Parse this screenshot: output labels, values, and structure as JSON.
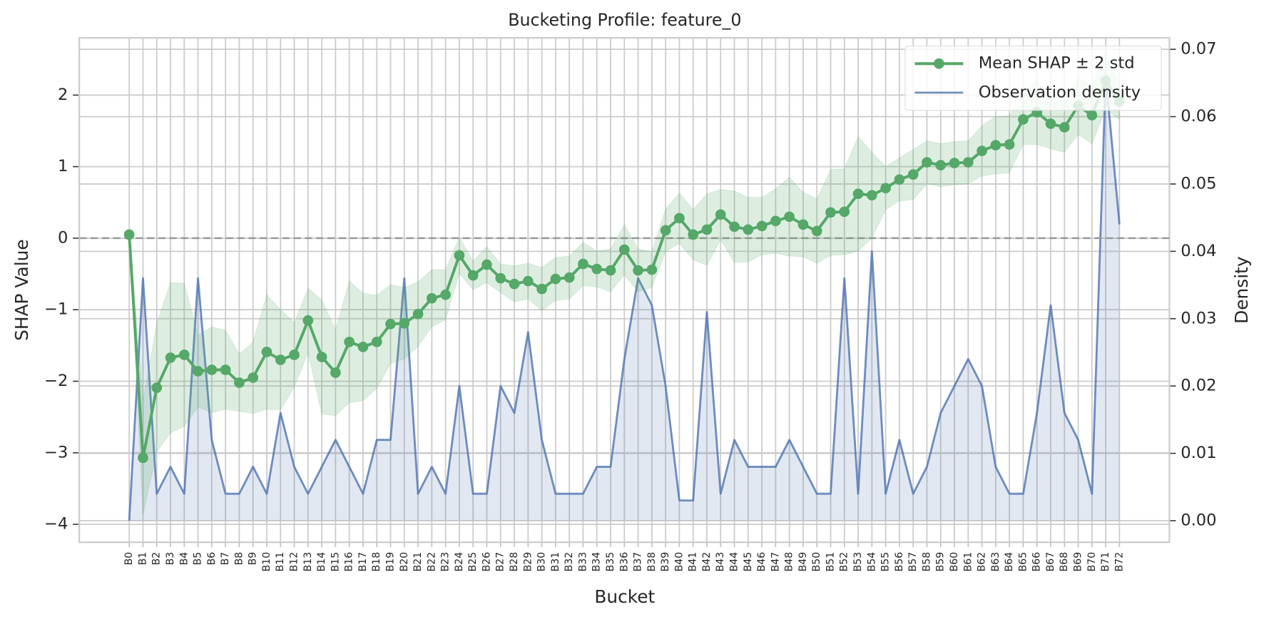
{
  "chart_data": {
    "type": "line",
    "title": "Bucketing Profile: feature_0",
    "xlabel": "Bucket",
    "ylabel": "SHAP Value",
    "y2label": "Density",
    "categories": [
      "B0",
      "B1",
      "B2",
      "B3",
      "B4",
      "B5",
      "B6",
      "B7",
      "B8",
      "B9",
      "B10",
      "B11",
      "B12",
      "B13",
      "B14",
      "B15",
      "B16",
      "B17",
      "B18",
      "B19",
      "B20",
      "B21",
      "B22",
      "B23",
      "B24",
      "B25",
      "B26",
      "B27",
      "B28",
      "B29",
      "B30",
      "B31",
      "B32",
      "B33",
      "B34",
      "B35",
      "B36",
      "B37",
      "B38",
      "B39",
      "B40",
      "B41",
      "B42",
      "B43",
      "B44",
      "B45",
      "B46",
      "B47",
      "B48",
      "B49",
      "B50",
      "B51",
      "B52",
      "B53",
      "B54",
      "B55",
      "B56",
      "B57",
      "B58",
      "B59",
      "B60",
      "B61",
      "B62",
      "B63",
      "B64",
      "B65",
      "B66",
      "B67",
      "B68",
      "B69",
      "B70",
      "B71",
      "B72"
    ],
    "series": [
      {
        "name": "Mean SHAP ± 2 std",
        "color": "#55a868",
        "values": [
          0.05,
          -3.07,
          -2.09,
          -1.67,
          -1.63,
          -1.86,
          -1.84,
          -1.84,
          -2.02,
          -1.95,
          -1.59,
          -1.7,
          -1.63,
          -1.15,
          -1.66,
          -1.88,
          -1.45,
          -1.52,
          -1.45,
          -1.2,
          -1.19,
          -1.06,
          -0.84,
          -0.79,
          -0.24,
          -0.52,
          -0.37,
          -0.56,
          -0.64,
          -0.6,
          -0.71,
          -0.57,
          -0.55,
          -0.36,
          -0.43,
          -0.45,
          -0.16,
          -0.45,
          -0.44,
          0.11,
          0.28,
          0.05,
          0.12,
          0.33,
          0.16,
          0.12,
          0.17,
          0.24,
          0.3,
          0.19,
          0.1,
          0.36,
          0.37,
          0.62,
          0.6,
          0.7,
          0.82,
          0.89,
          1.06,
          1.02,
          1.05,
          1.06,
          1.22,
          1.3,
          1.31,
          1.66,
          1.76,
          1.6,
          1.55,
          1.85,
          1.72,
          2.2,
          1.91
        ],
        "band_lower": [
          0.0,
          -3.87,
          -2.99,
          -2.72,
          -2.63,
          -2.36,
          -2.44,
          -2.39,
          -2.42,
          -2.45,
          -2.39,
          -2.4,
          -2.08,
          -1.6,
          -2.46,
          -2.48,
          -2.3,
          -2.27,
          -2.1,
          -1.75,
          -1.69,
          -1.51,
          -1.24,
          -1.14,
          -0.49,
          -0.72,
          -0.62,
          -0.76,
          -0.89,
          -0.85,
          -1.01,
          -0.87,
          -0.85,
          -0.66,
          -0.68,
          -0.75,
          -0.51,
          -0.75,
          -0.69,
          -0.19,
          -0.07,
          -0.3,
          -0.38,
          -0.02,
          -0.34,
          -0.33,
          -0.23,
          -0.21,
          -0.25,
          -0.26,
          -0.35,
          -0.24,
          -0.23,
          -0.18,
          0.0,
          0.4,
          0.52,
          0.54,
          0.76,
          0.72,
          0.75,
          0.76,
          0.87,
          0.9,
          0.91,
          1.31,
          1.31,
          1.25,
          1.2,
          1.45,
          1.32,
          1.8,
          1.66
        ],
        "band_upper": [
          0.1,
          -2.27,
          -1.19,
          -0.62,
          -0.63,
          -1.36,
          -1.24,
          -1.29,
          -1.62,
          -1.45,
          -0.79,
          -1.0,
          -1.18,
          -0.7,
          -0.86,
          -1.28,
          -0.6,
          -0.77,
          -0.8,
          -0.65,
          -0.69,
          -0.61,
          -0.44,
          -0.44,
          0.01,
          -0.32,
          -0.12,
          -0.36,
          -0.39,
          -0.35,
          -0.41,
          -0.27,
          -0.25,
          -0.06,
          -0.18,
          -0.15,
          0.19,
          -0.15,
          -0.19,
          0.41,
          0.63,
          0.4,
          0.62,
          0.68,
          0.66,
          0.57,
          0.57,
          0.69,
          0.85,
          0.64,
          0.55,
          0.96,
          0.97,
          1.42,
          1.2,
          1.0,
          1.12,
          1.24,
          1.36,
          1.32,
          1.35,
          1.36,
          1.57,
          1.7,
          1.71,
          2.01,
          2.21,
          1.95,
          1.9,
          2.25,
          2.12,
          2.6,
          2.16
        ]
      },
      {
        "name": "Observation density",
        "color": "#4c72b0",
        "axis": "y2",
        "fill": true,
        "values": [
          0.0,
          0.036,
          0.004,
          0.008,
          0.004,
          0.036,
          0.012,
          0.004,
          0.004,
          0.008,
          0.004,
          0.016,
          0.008,
          0.004,
          0.008,
          0.012,
          0.008,
          0.004,
          0.012,
          0.012,
          0.036,
          0.004,
          0.008,
          0.004,
          0.02,
          0.004,
          0.004,
          0.02,
          0.016,
          0.028,
          0.012,
          0.004,
          0.004,
          0.004,
          0.008,
          0.008,
          0.024,
          0.036,
          0.032,
          0.02,
          0.003,
          0.003,
          0.031,
          0.004,
          0.012,
          0.008,
          0.008,
          0.008,
          0.012,
          0.008,
          0.004,
          0.004,
          0.036,
          0.004,
          0.04,
          0.004,
          0.012,
          0.004,
          0.008,
          0.016,
          0.02,
          0.024,
          0.02,
          0.008,
          0.004,
          0.004,
          0.016,
          0.032,
          0.016,
          0.012,
          0.004,
          0.066,
          0.044
        ]
      }
    ],
    "ylim": [
      -4.25,
      2.8
    ],
    "yticks": [
      {
        "value": -4,
        "label": "−4"
      },
      {
        "value": -3,
        "label": "−3"
      },
      {
        "value": -2,
        "label": "−2"
      },
      {
        "value": -1,
        "label": "−1"
      },
      0,
      1,
      2
    ],
    "y2lim": [
      -0.0032,
      0.0717
    ],
    "y2ticks": [
      {
        "value": 0,
        "label": "0.00"
      },
      {
        "value": 0.01,
        "label": "0.01"
      },
      {
        "value": 0.02,
        "label": "0.02"
      },
      {
        "value": 0.03,
        "label": "0.03"
      },
      {
        "value": 0.04,
        "label": "0.04"
      },
      {
        "value": 0.05,
        "label": "0.05"
      },
      {
        "value": 0.06,
        "label": "0.06"
      },
      {
        "value": 0.07,
        "label": "0.07"
      }
    ],
    "hline": 0,
    "grid": true,
    "legend": "upper right"
  }
}
